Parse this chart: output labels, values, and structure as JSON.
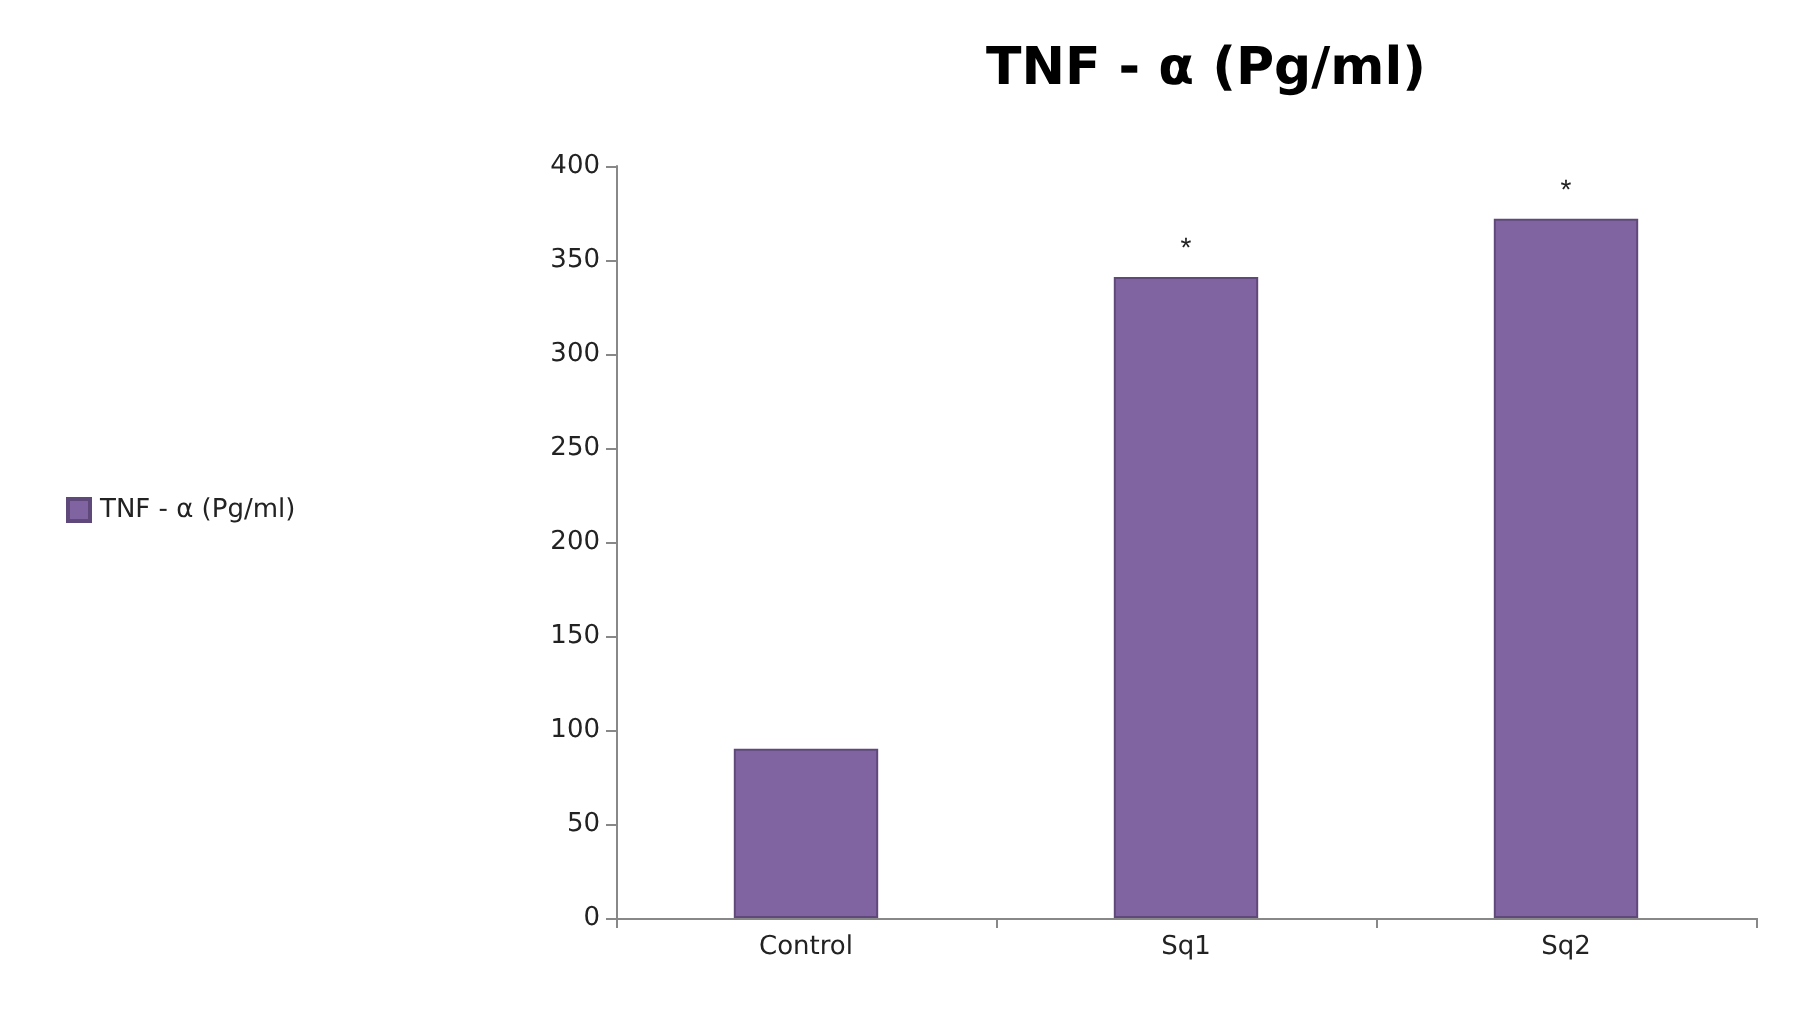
{
  "chart_data": {
    "type": "bar",
    "title": "TNF - α (Pg/ml)",
    "categories": [
      "Control",
      "Sq1",
      "Sq2"
    ],
    "series": [
      {
        "name": "TNF - α (Pg/ml)",
        "color": "#8064a2",
        "values": [
          90,
          341,
          372
        ]
      }
    ],
    "ylim": [
      0,
      400
    ],
    "yticks": [
      0,
      50,
      100,
      150,
      200,
      250,
      300,
      350,
      400
    ],
    "grid": false,
    "legend": "left",
    "annotations": [
      {
        "text": "*",
        "x": "Sq1",
        "y": 341
      },
      {
        "text": "*",
        "x": "Sq2",
        "y": 372
      }
    ]
  }
}
